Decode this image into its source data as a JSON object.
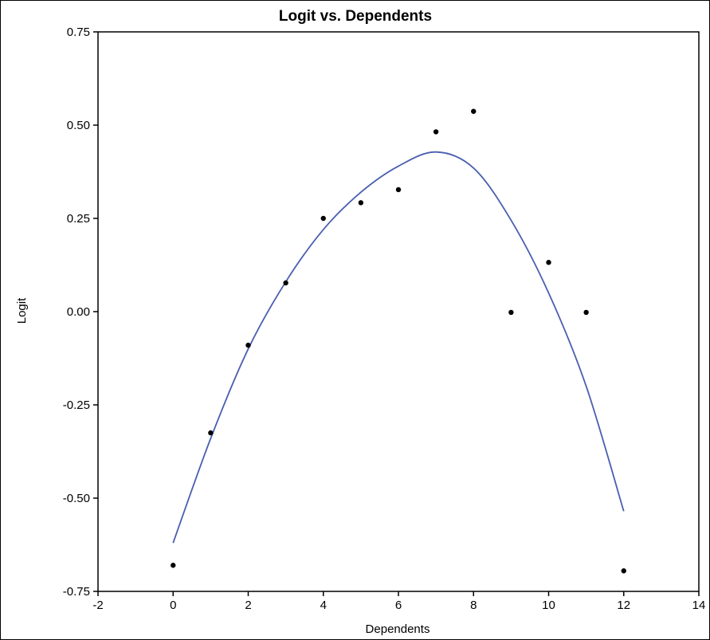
{
  "chart_data": {
    "type": "scatter",
    "title": "Logit vs. Dependents",
    "xlabel": "Dependents",
    "ylabel": "Logit",
    "xlim": [
      -2,
      14
    ],
    "ylim": [
      -0.75,
      0.75
    ],
    "x_ticks": [
      "-2",
      "0",
      "2",
      "4",
      "6",
      "8",
      "10",
      "12",
      "14"
    ],
    "y_ticks": [
      "0.75",
      "0.50",
      "0.25",
      "0.00",
      "-0.25",
      "-0.50",
      "-0.75"
    ],
    "grid": false,
    "points": [
      {
        "x": 0,
        "y": -0.68
      },
      {
        "x": 1,
        "y": -0.325
      },
      {
        "x": 2,
        "y": -0.09
      },
      {
        "x": 3,
        "y": 0.077
      },
      {
        "x": 4,
        "y": 0.25
      },
      {
        "x": 5,
        "y": 0.292
      },
      {
        "x": 6,
        "y": 0.327
      },
      {
        "x": 7,
        "y": 0.482
      },
      {
        "x": 8,
        "y": 0.537
      },
      {
        "x": 9,
        "y": -0.002
      },
      {
        "x": 10,
        "y": 0.132
      },
      {
        "x": 11,
        "y": -0.002
      },
      {
        "x": 12,
        "y": -0.695
      }
    ],
    "fit_curve": {
      "color": "#4a5fb0",
      "x": [
        0,
        1,
        2,
        3,
        4,
        5,
        6,
        7,
        8,
        9,
        10,
        11,
        12
      ],
      "y": [
        -0.62,
        -0.34,
        -0.1,
        0.08,
        0.22,
        0.32,
        0.39,
        0.428,
        0.385,
        0.245,
        0.05,
        -0.2,
        -0.535
      ]
    },
    "point_color": "#000000"
  }
}
